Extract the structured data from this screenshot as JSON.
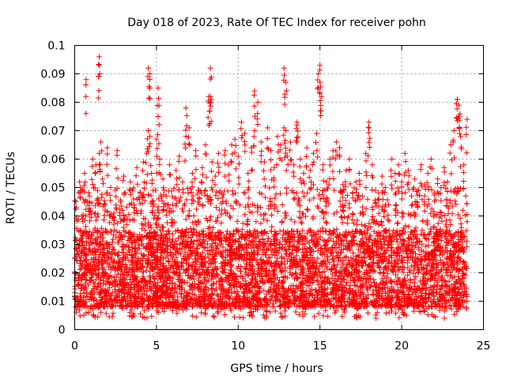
{
  "chart_data": {
    "type": "scatter",
    "title": "Day 018 of 2023, Rate Of TEC Index for receiver pohn",
    "xlabel": "GPS time / hours",
    "ylabel": "ROTI / TECUs",
    "xlim": [
      0,
      25
    ],
    "ylim": [
      0,
      0.1
    ],
    "xticks": [
      "0",
      "5",
      "10",
      "15",
      "20",
      "25"
    ],
    "yticks": [
      "0",
      "0.01",
      "0.02",
      "0.03",
      "0.04",
      "0.05",
      "0.06",
      "0.07",
      "0.08",
      "0.09",
      "0.1"
    ],
    "grid": true,
    "marker": "plus",
    "color": "#ff0000",
    "series": [
      {
        "name": "ROTI",
        "x": [
          0.1,
          0.3,
          0.5,
          0.6,
          0.7,
          0.9,
          1.1,
          1.3,
          1.4,
          1.5,
          1.6,
          1.7,
          1.8,
          2.0,
          2.2,
          2.4,
          2.6,
          2.8,
          3.0,
          3.2,
          3.4,
          3.6,
          3.8,
          4.0,
          4.2,
          4.4,
          4.5,
          4.6,
          4.7,
          4.8,
          5.0,
          5.1,
          5.2,
          5.4,
          5.6,
          5.8,
          6.0,
          6.2,
          6.4,
          6.6,
          6.8,
          7.0,
          7.2,
          7.4,
          7.6,
          7.8,
          8.0,
          8.2,
          8.3,
          8.4,
          8.6,
          8.8,
          9.0,
          9.2,
          9.4,
          9.6,
          9.8,
          10.0,
          10.2,
          10.4,
          10.6,
          10.8,
          11.0,
          11.2,
          11.4,
          11.6,
          11.8,
          12.0,
          12.2,
          12.4,
          12.6,
          12.8,
          12.9,
          13.0,
          13.2,
          13.4,
          13.6,
          13.8,
          14.0,
          14.2,
          14.4,
          14.6,
          14.8,
          14.9,
          15.0,
          15.2,
          15.4,
          15.6,
          15.8,
          16.0,
          16.2,
          16.4,
          16.6,
          16.8,
          17.0,
          17.2,
          17.4,
          17.6,
          17.8,
          18.0,
          18.2,
          18.4,
          18.6,
          18.8,
          19.0,
          19.2,
          19.4,
          19.6,
          19.8,
          20.0,
          20.2,
          20.4,
          20.6,
          20.8,
          21.0,
          21.2,
          21.4,
          21.6,
          21.8,
          22.0,
          22.2,
          22.4,
          22.6,
          22.8,
          23.0,
          23.2,
          23.4,
          23.5,
          23.6,
          23.8,
          24.0,
          1.5,
          1.5,
          0.7,
          4.6,
          4.5,
          5.1,
          8.3,
          8.3,
          12.8,
          12.9,
          15.0,
          15.1,
          23.4,
          23.5,
          11.0,
          13.6,
          18.0,
          6.8
        ],
        "y": [
          0.043,
          0.052,
          0.038,
          0.055,
          0.031,
          0.047,
          0.06,
          0.058,
          0.049,
          0.062,
          0.066,
          0.053,
          0.044,
          0.064,
          0.05,
          0.041,
          0.063,
          0.045,
          0.054,
          0.039,
          0.052,
          0.046,
          0.057,
          0.048,
          0.059,
          0.062,
          0.07,
          0.068,
          0.055,
          0.049,
          0.067,
          0.075,
          0.06,
          0.053,
          0.047,
          0.058,
          0.044,
          0.056,
          0.061,
          0.052,
          0.068,
          0.071,
          0.055,
          0.063,
          0.049,
          0.057,
          0.065,
          0.082,
          0.08,
          0.059,
          0.054,
          0.062,
          0.048,
          0.063,
          0.058,
          0.065,
          0.067,
          0.061,
          0.073,
          0.069,
          0.055,
          0.064,
          0.07,
          0.08,
          0.066,
          0.059,
          0.071,
          0.063,
          0.057,
          0.068,
          0.065,
          0.071,
          0.07,
          0.061,
          0.066,
          0.058,
          0.073,
          0.06,
          0.055,
          0.064,
          0.056,
          0.062,
          0.069,
          0.09,
          0.087,
          0.058,
          0.052,
          0.06,
          0.063,
          0.066,
          0.064,
          0.051,
          0.056,
          0.06,
          0.048,
          0.052,
          0.055,
          0.047,
          0.062,
          0.071,
          0.058,
          0.049,
          0.046,
          0.054,
          0.05,
          0.044,
          0.06,
          0.055,
          0.058,
          0.052,
          0.062,
          0.056,
          0.047,
          0.053,
          0.049,
          0.058,
          0.051,
          0.055,
          0.06,
          0.048,
          0.053,
          0.05,
          0.057,
          0.052,
          0.065,
          0.07,
          0.081,
          0.075,
          0.068,
          0.058,
          0.074,
          0.096,
          0.093,
          0.088,
          0.09,
          0.092,
          0.085,
          0.092,
          0.082,
          0.092,
          0.087,
          0.093,
          0.082,
          0.081,
          0.079,
          0.084,
          0.072,
          0.073,
          0.078
        ]
      }
    ],
    "band": {
      "x_start": 0.0,
      "x_end": 24.0,
      "lower_floor": 0.004,
      "dense_low": 0.008,
      "dense_high": 0.035,
      "sparse_high": 0.05
    }
  }
}
